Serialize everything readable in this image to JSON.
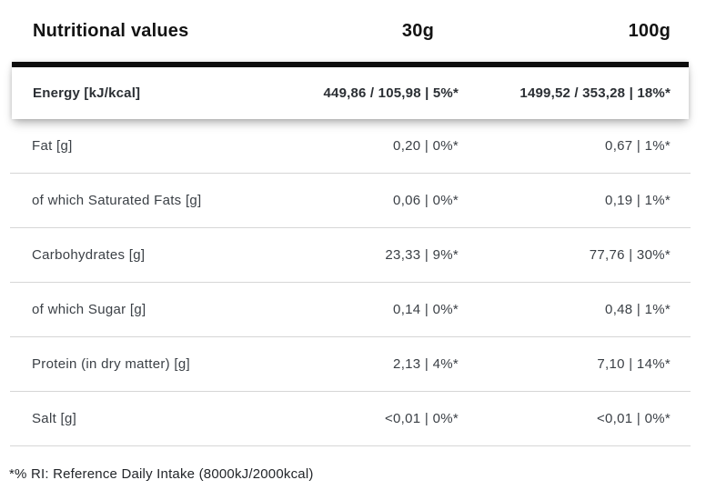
{
  "table": {
    "title": "Nutritional values",
    "columns": {
      "col_30": "30g",
      "col_100": "100g"
    },
    "rows": [
      {
        "label": "Energy [kJ/kcal]",
        "v30": "449,86 / 105,98 | 5%*",
        "v100": "1499,52 / 353,28 | 18%*",
        "highlighted": true
      },
      {
        "label": "Fat [g]",
        "v30": "0,20 | 0%*",
        "v100": "0,67 | 1%*"
      },
      {
        "label": "of which Saturated Fats [g]",
        "v30": "0,06 | 0%*",
        "v100": "0,19 | 1%*"
      },
      {
        "label": "Carbohydrates [g]",
        "v30": "23,33 | 9%*",
        "v100": "77,76 | 30%*"
      },
      {
        "label": "of which Sugar [g]",
        "v30": "0,14 | 0%*",
        "v100": "0,48 | 1%*"
      },
      {
        "label": "Protein (in dry matter) [g]",
        "v30": "2,13 | 4%*",
        "v100": "7,10 | 14%*"
      },
      {
        "label": "Salt [g]",
        "v30": "<0,01 | 0%*",
        "v100": "<0,01 | 0%*"
      }
    ],
    "footnote": "*% RI: Reference Daily Intake (8000kJ/2000kcal)"
  },
  "colors": {
    "header_text": "#131313",
    "row_text": "#3b4046",
    "highlight_bar": "#0d0d0d",
    "separator": "#d6d6d6",
    "background": "#ffffff"
  }
}
